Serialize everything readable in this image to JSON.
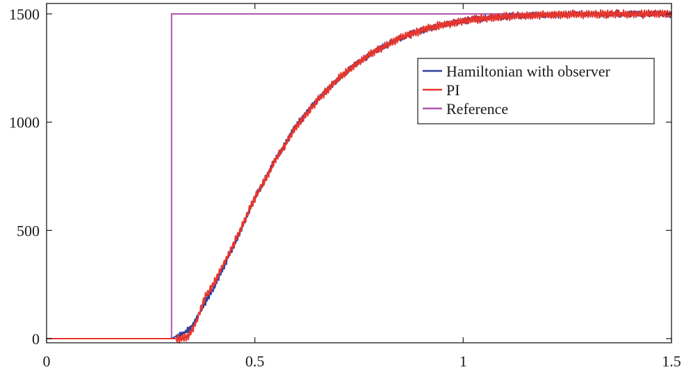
{
  "chart_data": {
    "type": "line",
    "xlim": [
      0,
      1.5
    ],
    "ylim": [
      0,
      1500
    ],
    "x_ticks": [
      {
        "value": 0,
        "label": "0"
      },
      {
        "value": 0.5,
        "label": "0.5"
      },
      {
        "value": 1,
        "label": "1"
      },
      {
        "value": 1.5,
        "label": "1.5"
      }
    ],
    "y_ticks": [
      {
        "value": 0,
        "label": "0"
      },
      {
        "value": 500,
        "label": "500"
      },
      {
        "value": 1000,
        "label": "1000"
      },
      {
        "value": 1500,
        "label": "1500"
      }
    ],
    "grid": false,
    "legend_position": "top-right",
    "series": [
      {
        "name": "Hamiltonian with observer",
        "color": "#2b3d9a",
        "x": [
          0,
          0.3,
          0.31,
          0.33,
          0.35,
          0.37,
          0.4,
          0.45,
          0.5,
          0.55,
          0.6,
          0.65,
          0.7,
          0.75,
          0.8,
          0.85,
          0.9,
          0.95,
          1.0,
          1.05,
          1.1,
          1.15,
          1.2,
          1.25,
          1.3,
          1.35,
          1.4,
          1.45,
          1.5
        ],
        "y": [
          0,
          0,
          10,
          25,
          60,
          130,
          230,
          430,
          650,
          830,
          985,
          1105,
          1200,
          1280,
          1340,
          1390,
          1425,
          1450,
          1468,
          1480,
          1488,
          1493,
          1496,
          1498,
          1499,
          1500,
          1500,
          1500,
          1500
        ]
      },
      {
        "name": "PI",
        "color": "#e8352b",
        "x": [
          0,
          0.3,
          0.32,
          0.34,
          0.36,
          0.38,
          0.4,
          0.45,
          0.5,
          0.55,
          0.6,
          0.65,
          0.7,
          0.75,
          0.8,
          0.85,
          0.9,
          0.95,
          1.0,
          1.05,
          1.1,
          1.15,
          1.2,
          1.25,
          1.3,
          1.35,
          1.4,
          1.45,
          1.5
        ],
        "y": [
          0,
          0,
          0,
          10,
          80,
          190,
          250,
          440,
          650,
          825,
          980,
          1100,
          1200,
          1280,
          1340,
          1390,
          1425,
          1450,
          1468,
          1480,
          1488,
          1493,
          1496,
          1498,
          1499,
          1500,
          1500,
          1500,
          1500
        ]
      },
      {
        "name": "Reference",
        "color": "#b054b0",
        "x": [
          0,
          0.3,
          0.3,
          1.5
        ],
        "y": [
          0,
          0,
          1500,
          1500
        ]
      }
    ]
  }
}
